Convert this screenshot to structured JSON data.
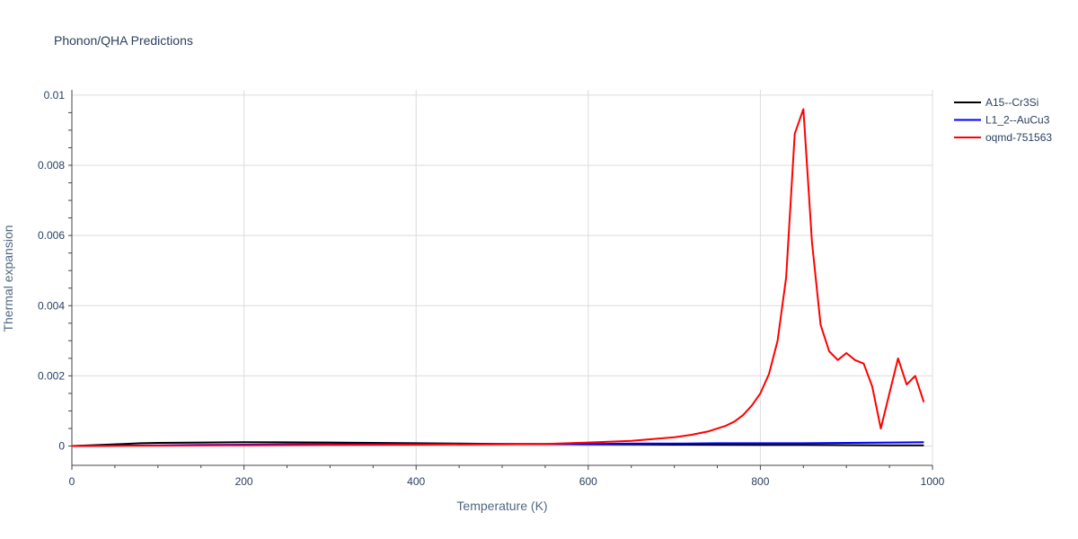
{
  "chart_data": {
    "type": "line",
    "title": "Phonon/QHA Predictions",
    "xlabel": "Temperature (K)",
    "ylabel": "Thermal expansion",
    "xlim": [
      0,
      1000
    ],
    "ylim": [
      -0.00055,
      0.01015
    ],
    "x_ticks": [
      0,
      200,
      400,
      600,
      800,
      1000
    ],
    "x_tick_labels": [
      "0",
      "200",
      "400",
      "600",
      "800",
      "1000"
    ],
    "y_ticks": [
      0,
      0.002,
      0.004,
      0.006,
      0.008,
      0.01
    ],
    "y_tick_labels": [
      "0",
      "0.002",
      "0.004",
      "0.006",
      "0.008",
      "0.01"
    ],
    "grid": true,
    "legend_position": "top-right",
    "series": [
      {
        "name": "A15--Cr3Si",
        "color": "#000000",
        "x": [
          0,
          20,
          40,
          60,
          80,
          100,
          150,
          200,
          250,
          300,
          350,
          400,
          450,
          500,
          550,
          600,
          650,
          700,
          750,
          800,
          850,
          900,
          950,
          990
        ],
        "y": [
          0,
          2e-05,
          4e-05,
          6e-05,
          8e-05,
          9e-05,
          0.0001,
          0.00011,
          0.000105,
          0.0001,
          9e-05,
          8e-05,
          7e-05,
          6e-05,
          5.5e-05,
          5e-05,
          4.5e-05,
          4e-05,
          3.5e-05,
          3e-05,
          3e-05,
          2.5e-05,
          2e-05,
          2e-05
        ]
      },
      {
        "name": "L1_2--AuCu3",
        "color": "#0000ff",
        "x": [
          0,
          50,
          100,
          150,
          200,
          250,
          300,
          350,
          400,
          450,
          500,
          550,
          600,
          650,
          700,
          750,
          800,
          850,
          900,
          950,
          990
        ],
        "y": [
          0,
          1e-05,
          2e-05,
          3e-05,
          4e-05,
          5e-05,
          5e-05,
          6e-05,
          6e-05,
          6e-05,
          6e-05,
          6e-05,
          6e-05,
          7e-05,
          7e-05,
          8e-05,
          8e-05,
          8e-05,
          9e-05,
          0.0001,
          0.00011
        ]
      },
      {
        "name": "oqmd-751563",
        "color": "#ff0000",
        "x": [
          0,
          100,
          200,
          300,
          400,
          500,
          550,
          600,
          650,
          700,
          720,
          740,
          760,
          770,
          780,
          790,
          800,
          810,
          820,
          830,
          840,
          850,
          860,
          870,
          880,
          890,
          900,
          910,
          920,
          930,
          940,
          950,
          960,
          970,
          980,
          990
        ],
        "y": [
          0,
          1e-05,
          2e-05,
          3e-05,
          4e-05,
          5e-05,
          6e-05,
          0.0001,
          0.00015,
          0.00025,
          0.00032,
          0.00042,
          0.00058,
          0.0007,
          0.00088,
          0.00115,
          0.0015,
          0.00205,
          0.003,
          0.0048,
          0.0089,
          0.0096,
          0.0058,
          0.00345,
          0.0027,
          0.00245,
          0.00265,
          0.00245,
          0.00235,
          0.0017,
          0.0005,
          0.0015,
          0.0025,
          0.00175,
          0.002,
          0.00125
        ]
      }
    ]
  }
}
